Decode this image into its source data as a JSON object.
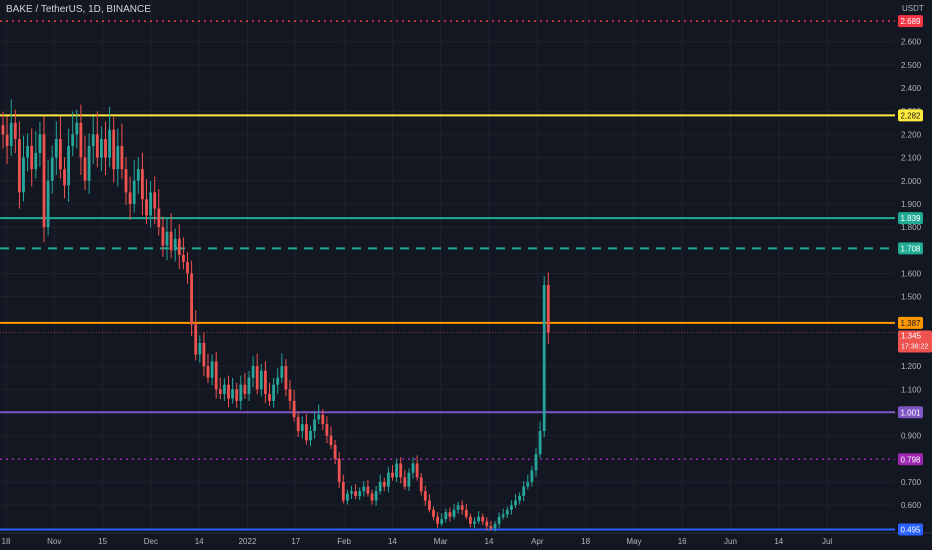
{
  "header": {
    "title": "BAKE / TetherUS, 1D, BINANCE",
    "currency": "USDT"
  },
  "colors": {
    "background": "#131722",
    "grid": "#1e222d",
    "text": "#b2b5be",
    "up": "#26a69a",
    "down": "#ef5350"
  },
  "chart_data": {
    "type": "candlestick",
    "title": "BAKE / TetherUS, 1D, BINANCE",
    "y_scale": "linear",
    "ylim": [
      0.48,
      2.78
    ],
    "y_ticks": [
      "2.600",
      "2.500",
      "2.400",
      "2.300",
      "2.200",
      "2.100",
      "2.000",
      "1.900",
      "1.800",
      "1.600",
      "1.500",
      "1.200",
      "1.100",
      "0.900",
      "0.700",
      "0.600"
    ],
    "x_ticks": [
      "18",
      "Nov",
      "15",
      "Dec",
      "14",
      "2022",
      "17",
      "Feb",
      "14",
      "Mar",
      "14",
      "Apr",
      "18",
      "May",
      "16",
      "Jun",
      "14",
      "Jul"
    ],
    "grid": true,
    "horizontal_levels": [
      {
        "value": 2.689,
        "label": "2.689",
        "color": "#f23645",
        "style": "dotted"
      },
      {
        "value": 2.282,
        "label": "2.282",
        "color": "#ffeb3b",
        "style": "solid"
      },
      {
        "value": 1.839,
        "label": "1.839",
        "color": "#22ab94",
        "style": "solid"
      },
      {
        "value": 1.708,
        "label": "1.708",
        "color": "#22ab94",
        "style": "dashed"
      },
      {
        "value": 1.387,
        "label": "1.387",
        "color": "#ff9800",
        "style": "solid"
      },
      {
        "value": 1.001,
        "label": "1.001",
        "color": "#7e57c2",
        "style": "solid"
      },
      {
        "value": 0.798,
        "label": "0.798",
        "color": "#9c27b0",
        "style": "dotted"
      },
      {
        "value": 0.495,
        "label": "0.495",
        "color": "#2962ff",
        "style": "solid"
      }
    ],
    "current_price": {
      "value": 1.345,
      "label": "1.345",
      "countdown": "17:38:22",
      "color": "#ef5350"
    },
    "closes": [
      2.2,
      2.15,
      2.25,
      2.18,
      1.95,
      2.1,
      2.15,
      2.05,
      2.12,
      2.2,
      1.8,
      2.0,
      2.1,
      2.18,
      2.05,
      1.98,
      2.15,
      2.2,
      2.25,
      2.1,
      2.0,
      2.15,
      2.2,
      2.1,
      2.18,
      2.1,
      2.22,
      2.05,
      2.15,
      2.05,
      1.95,
      1.9,
      2.0,
      2.05,
      1.92,
      1.85,
      1.95,
      1.88,
      1.8,
      1.72,
      1.78,
      1.7,
      1.75,
      1.68,
      1.65,
      1.6,
      1.38,
      1.25,
      1.3,
      1.2,
      1.15,
      1.22,
      1.1,
      1.08,
      1.12,
      1.06,
      1.1,
      1.05,
      1.12,
      1.08,
      1.15,
      1.2,
      1.1,
      1.18,
      1.08,
      1.05,
      1.12,
      1.15,
      1.2,
      1.1,
      1.05,
      0.98,
      0.92,
      0.95,
      0.88,
      0.92,
      0.97,
      0.99,
      0.95,
      0.9,
      0.86,
      0.8,
      0.7,
      0.62,
      0.65,
      0.66,
      0.64,
      0.66,
      0.68,
      0.65,
      0.62,
      0.66,
      0.7,
      0.68,
      0.74,
      0.72,
      0.78,
      0.72,
      0.68,
      0.74,
      0.78,
      0.72,
      0.66,
      0.62,
      0.58,
      0.55,
      0.52,
      0.54,
      0.57,
      0.55,
      0.58,
      0.6,
      0.58,
      0.55,
      0.52,
      0.53,
      0.55,
      0.53,
      0.51,
      0.5,
      0.52,
      0.55,
      0.56,
      0.58,
      0.6,
      0.62,
      0.64,
      0.68,
      0.7,
      0.75,
      0.82,
      0.92,
      1.55,
      1.345
    ]
  }
}
